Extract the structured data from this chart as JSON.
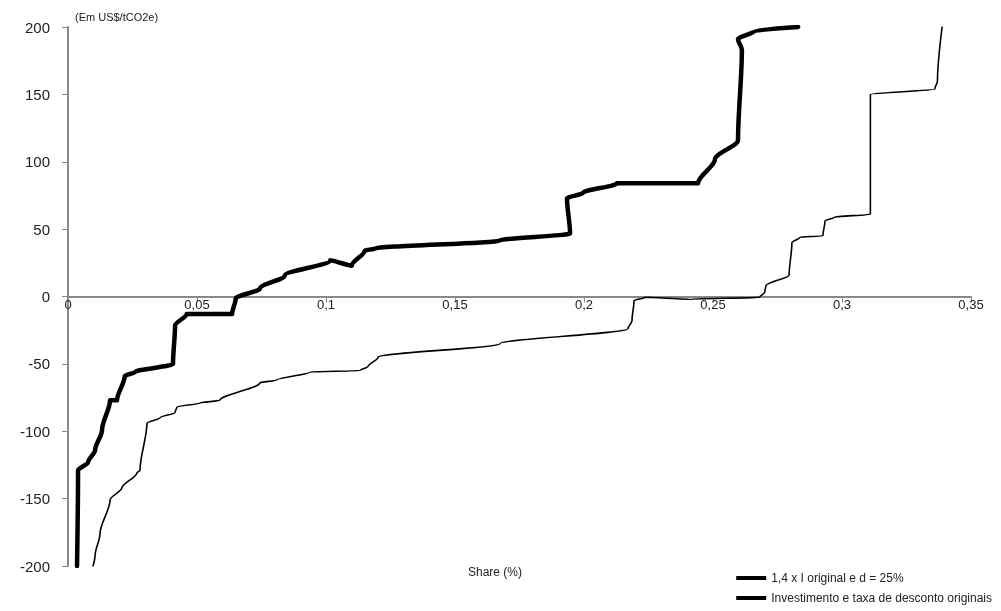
{
  "chart_data": {
    "type": "line",
    "ylabel": "(Em US$/tCO2e)",
    "xlabel": "Share (%)",
    "xlim": [
      0,
      0.35
    ],
    "xticks": [
      {
        "value": 0,
        "label": "0"
      },
      {
        "value": 0.05,
        "label": "0,05"
      },
      {
        "value": 0.1,
        "label": "0,1"
      },
      {
        "value": 0.15,
        "label": "0,15"
      },
      {
        "value": 0.2,
        "label": "0,2"
      },
      {
        "value": 0.25,
        "label": "0,25"
      },
      {
        "value": 0.3,
        "label": "0,3"
      },
      {
        "value": 0.35,
        "label": "0,35"
      }
    ],
    "ylim": [
      -200,
      200
    ],
    "yticks": [
      -200,
      -150,
      -100,
      -50,
      0,
      50,
      100,
      150,
      200
    ],
    "legend": "bottom right",
    "marker": "none",
    "series": [
      {
        "name": "1,4 x I original e d = 25%",
        "color": "#000000",
        "x": [
          0.0035,
          0.0039,
          0.0078,
          0.0105,
          0.0132,
          0.0163,
          0.019,
          0.022,
          0.026,
          0.0407,
          0.0415,
          0.046,
          0.0636,
          0.065,
          0.0744,
          0.084,
          0.1016,
          0.11,
          0.115,
          0.119,
          0.1674,
          0.1946,
          0.1934,
          0.1996,
          0.2128,
          0.2442,
          0.2508,
          0.2597,
          0.2612,
          0.2597,
          0.2659,
          0.283
        ],
        "values": [
          -200,
          -129,
          -123,
          -114,
          -99,
          -77,
          -77,
          -59,
          -56,
          -50,
          -21.5,
          -13,
          -13,
          -1.5,
          6,
          15.6,
          26.7,
          23,
          34,
          35.6,
          41.6,
          46.8,
          72.7,
          77,
          84,
          84,
          102,
          116,
          183,
          191,
          197,
          200
        ]
      },
      {
        "name": "Investimento e taxa de desconto originais",
        "color": "#000000",
        "x": [
          0.0097,
          0.0105,
          0.0124,
          0.0163,
          0.0209,
          0.0267,
          0.0279,
          0.0306,
          0.0357,
          0.0415,
          0.0422,
          0.0512,
          0.0589,
          0.0744,
          0.081,
          0.0938,
          0.1132,
          0.1163,
          0.1202,
          0.1674,
          0.217,
          0.2186,
          0.2194,
          0.2236,
          0.241,
          0.268,
          0.27,
          0.2705,
          0.2795,
          0.2806,
          0.2837,
          0.2926,
          0.2934,
          0.2973,
          0.311,
          0.311,
          0.336,
          0.337,
          0.3388
        ],
        "values": [
          -200,
          -192,
          -176,
          -151,
          -142,
          -131,
          -129,
          -94,
          -90,
          -86,
          -82,
          -79,
          -77,
          -64,
          -62,
          -56,
          -55,
          -52,
          -45,
          -35,
          -24,
          -18,
          -3,
          -0.7,
          -2,
          -0.7,
          3,
          8,
          16,
          40,
          44,
          45,
          56,
          59,
          61,
          150,
          154,
          160,
          200
        ]
      }
    ]
  }
}
